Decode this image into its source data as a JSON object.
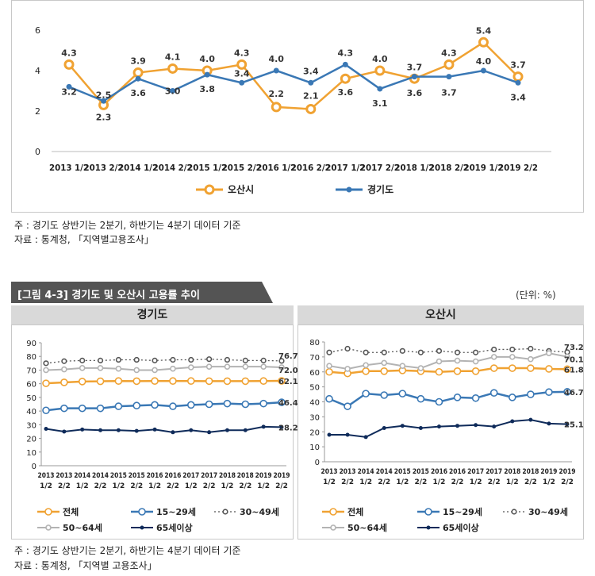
{
  "top": {
    "notes": [
      "주 : 경기도 상반기는 2분기, 하반기는 4분기 데이터 기준",
      "자료 : 통계청, 「지역별고용조사」"
    ]
  },
  "figure": {
    "title": "[그림 4-3] 경기도 및 오산시 고용률 추이",
    "unit": "(단위: %)",
    "left_panel_title": "경기도",
    "right_panel_title": "오산시",
    "notes": [
      "주 : 경기도 상반기는 2분기, 하반기는 4분기 데이터 기준",
      "자료 : 통계청, 「지역별 고용조사」"
    ]
  },
  "colors": {
    "orange": "#f0a232",
    "blue": "#3a78b5",
    "gray": "#b3b3b3",
    "dark": "#0f2b5a",
    "banner": "#545454"
  },
  "chart_data": [
    {
      "type": "line",
      "categories": [
        "2013 1/2",
        "2013 2/2",
        "2014 1/2",
        "2014 2/2",
        "2015 1/2",
        "2015 2/2",
        "2016 1/2",
        "2016 2/2",
        "2017 1/2",
        "2017 2/2",
        "2018 1/2",
        "2018 2/2",
        "2019 1/2",
        "2019 2/2"
      ],
      "ylim": [
        0,
        6
      ],
      "yticks": [
        0,
        2,
        4,
        6
      ],
      "grid": false,
      "legend": "bottom",
      "series": [
        {
          "name": "오산시",
          "color": "#f0a232",
          "values": [
            4.3,
            2.3,
            3.9,
            4.1,
            4.0,
            4.3,
            2.2,
            2.1,
            3.6,
            4.0,
            3.6,
            4.3,
            5.4,
            3.7
          ],
          "labels": [
            "4.3",
            "2.3",
            "3.9",
            "4.1",
            "4.0",
            "4.3",
            "2.2",
            "2.1",
            "3.6",
            "4.0",
            "3.6",
            "4.3",
            "5.4",
            "3.7"
          ]
        },
        {
          "name": "경기도",
          "color": "#3a78b5",
          "values": [
            3.2,
            2.5,
            3.6,
            3.0,
            3.8,
            3.4,
            4.0,
            3.4,
            4.3,
            3.1,
            3.7,
            3.7,
            4.0,
            3.4
          ],
          "labels": [
            "3.2",
            "2.5",
            "3.6",
            "3.0",
            "3.8",
            "3.4",
            "4.0",
            "3.4",
            "4.3",
            "3.1",
            "3.7",
            "3.7",
            "4.0",
            "3.4"
          ]
        }
      ]
    },
    {
      "type": "line",
      "title": "경기도",
      "categories": [
        "2013 1/2",
        "2013 2/2",
        "2014 1/2",
        "2014 2/2",
        "2015 1/2",
        "2015 2/2",
        "2016 1/2",
        "2016 2/2",
        "2017 1/2",
        "2017 2/2",
        "2018 1/2",
        "2018 2/2",
        "2019 1/2",
        "2019 2/2"
      ],
      "ylim": [
        0,
        90
      ],
      "yticks": [
        0,
        10,
        20,
        30,
        40,
        50,
        60,
        70,
        80,
        90
      ],
      "grid": false,
      "legend": "bottom",
      "series": [
        {
          "name": "전체",
          "style": "orange",
          "values": [
            60.3,
            61.0,
            61.6,
            61.8,
            62.0,
            61.9,
            62.0,
            62.0,
            62.0,
            61.9,
            61.9,
            61.9,
            62.0,
            62.1
          ],
          "end_label": "62.1"
        },
        {
          "name": "15~29세",
          "style": "blue",
          "values": [
            40.5,
            42.0,
            42.0,
            42.0,
            43.5,
            44.0,
            44.5,
            43.5,
            44.5,
            45.0,
            45.5,
            45.0,
            45.5,
            46.4
          ],
          "end_label": "46.4"
        },
        {
          "name": "30~49세",
          "style": "dotted",
          "values": [
            75.0,
            76.5,
            77.0,
            77.0,
            77.5,
            77.5,
            77.0,
            77.5,
            77.5,
            78.0,
            77.5,
            77.0,
            77.0,
            76.7
          ],
          "end_label": "76.7"
        },
        {
          "name": "50~64세",
          "style": "gray",
          "values": [
            70.0,
            70.5,
            71.5,
            71.5,
            71.0,
            70.0,
            70.0,
            71.0,
            72.0,
            72.5,
            72.5,
            72.5,
            72.5,
            72.0
          ],
          "end_label": "72.0"
        },
        {
          "name": "65세이상",
          "style": "dark",
          "values": [
            27.0,
            25.0,
            26.5,
            26.0,
            26.0,
            25.5,
            26.5,
            24.5,
            26.0,
            24.5,
            26.0,
            26.0,
            28.5,
            28.2
          ],
          "end_label": "28.2"
        }
      ]
    },
    {
      "type": "line",
      "title": "오산시",
      "categories": [
        "2013 1/2",
        "2013 2/2",
        "2014 1/2",
        "2014 2/2",
        "2015 1/2",
        "2015 2/2",
        "2016 1/2",
        "2016 2/2",
        "2017 1/2",
        "2017 2/2",
        "2018 1/2",
        "2018 2/2",
        "2019 1/2",
        "2019 2/2"
      ],
      "ylim": [
        0,
        80
      ],
      "yticks": [
        0,
        10,
        20,
        30,
        40,
        50,
        60,
        70,
        80
      ],
      "grid": false,
      "legend": "bottom",
      "series": [
        {
          "name": "전체",
          "style": "orange",
          "values": [
            60.0,
            59.0,
            60.5,
            60.5,
            61.0,
            60.5,
            60.0,
            60.5,
            60.5,
            62.5,
            62.5,
            62.5,
            62.0,
            61.8
          ],
          "end_label": "61.8"
        },
        {
          "name": "15~29세",
          "style": "blue",
          "values": [
            42.0,
            37.0,
            45.5,
            44.5,
            45.5,
            42.0,
            40.0,
            43.0,
            42.5,
            46.0,
            43.0,
            45.0,
            46.5,
            46.7
          ],
          "end_label": "46.7"
        },
        {
          "name": "30~49세",
          "style": "dotted",
          "values": [
            73.0,
            75.5,
            73.0,
            73.0,
            74.0,
            73.0,
            74.0,
            73.0,
            73.0,
            75.0,
            75.0,
            75.5,
            74.0,
            73.2
          ],
          "end_label": "73.2"
        },
        {
          "name": "50~64세",
          "style": "gray",
          "values": [
            64.0,
            62.0,
            64.5,
            66.0,
            64.0,
            62.5,
            67.0,
            67.5,
            67.0,
            70.0,
            70.0,
            68.5,
            72.5,
            70.1
          ],
          "end_label": "70.1"
        },
        {
          "name": "65세이상",
          "style": "dark",
          "values": [
            18.0,
            18.0,
            16.5,
            22.5,
            24.0,
            22.5,
            23.5,
            24.0,
            24.5,
            23.5,
            27.0,
            28.0,
            25.5,
            25.1
          ],
          "end_label": "25.1"
        }
      ]
    }
  ]
}
